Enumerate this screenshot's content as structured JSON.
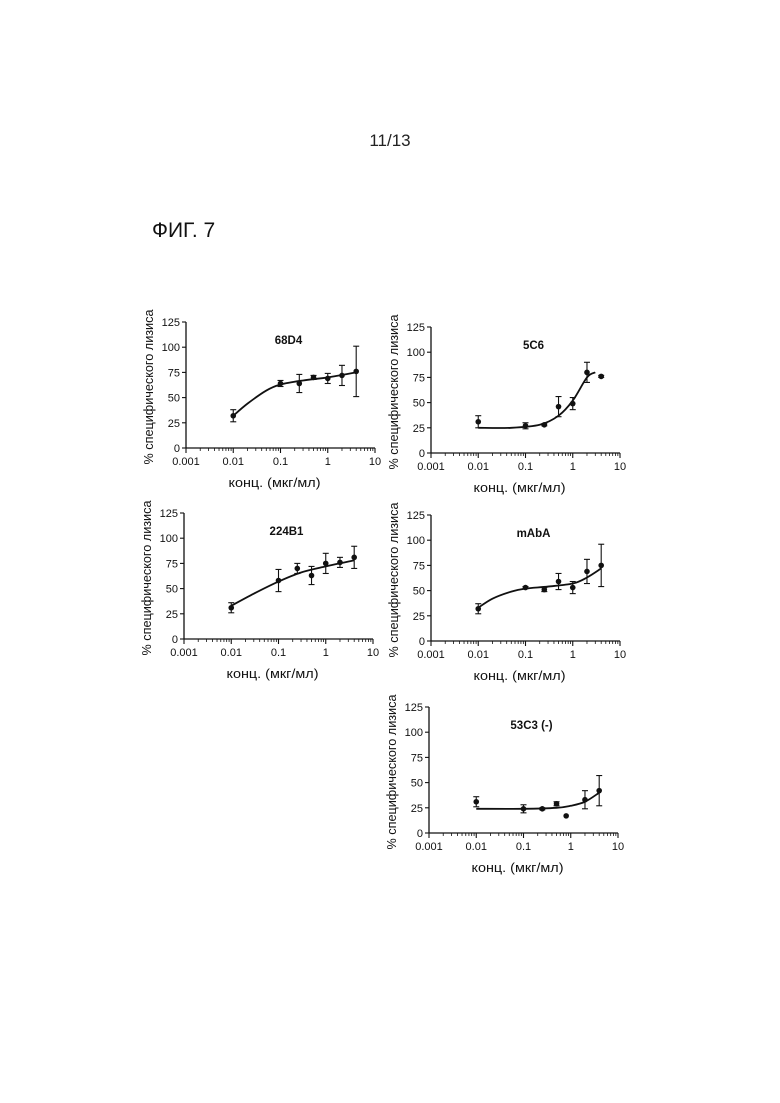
{
  "page_number": "11/13",
  "figure_label": "ФИГ. 7",
  "axis_common": {
    "ylabel": "% специфического лизиса",
    "xlabel": "конц. (мкг/мл)",
    "x_ticks": [
      "0.001",
      "0.01",
      "0.1",
      "1",
      "10"
    ],
    "y_ticks": [
      "0",
      "25",
      "50",
      "75",
      "100",
      "125"
    ]
  },
  "chart_data": [
    {
      "type": "scatter",
      "title": "68D4",
      "x_scale": "log",
      "xlim": [
        0.001,
        10
      ],
      "ylim": [
        0,
        125
      ],
      "points": [
        {
          "x": 0.01,
          "y": 32,
          "err": 6
        },
        {
          "x": 0.1,
          "y": 64,
          "err": 3
        },
        {
          "x": 0.25,
          "y": 64,
          "err": 9
        },
        {
          "x": 0.5,
          "y": 70,
          "err": 2
        },
        {
          "x": 1,
          "y": 69,
          "err": 5
        },
        {
          "x": 2,
          "y": 72,
          "err": 10
        },
        {
          "x": 4,
          "y": 76,
          "err": 25
        }
      ],
      "fit": [
        {
          "x": 0.01,
          "y": 32
        },
        {
          "x": 0.02,
          "y": 44
        },
        {
          "x": 0.05,
          "y": 57
        },
        {
          "x": 0.1,
          "y": 63
        },
        {
          "x": 0.3,
          "y": 67
        },
        {
          "x": 1,
          "y": 70
        },
        {
          "x": 4,
          "y": 75
        }
      ]
    },
    {
      "type": "scatter",
      "title": "5C6",
      "x_scale": "log",
      "xlim": [
        0.001,
        10
      ],
      "ylim": [
        0,
        125
      ],
      "points": [
        {
          "x": 0.01,
          "y": 31,
          "err": 6
        },
        {
          "x": 0.1,
          "y": 27,
          "err": 3
        },
        {
          "x": 0.25,
          "y": 28,
          "err": 1
        },
        {
          "x": 0.5,
          "y": 46,
          "err": 10
        },
        {
          "x": 1,
          "y": 49,
          "err": 6
        },
        {
          "x": 2,
          "y": 80,
          "err": 10
        },
        {
          "x": 4,
          "y": 76,
          "err": 1
        }
      ],
      "fit": [
        {
          "x": 0.01,
          "y": 25
        },
        {
          "x": 0.05,
          "y": 25
        },
        {
          "x": 0.2,
          "y": 28
        },
        {
          "x": 0.5,
          "y": 37
        },
        {
          "x": 1,
          "y": 52
        },
        {
          "x": 2,
          "y": 75
        },
        {
          "x": 3,
          "y": 80
        }
      ]
    },
    {
      "type": "scatter",
      "title": "224B1",
      "x_scale": "log",
      "xlim": [
        0.001,
        10
      ],
      "ylim": [
        0,
        125
      ],
      "points": [
        {
          "x": 0.01,
          "y": 31,
          "err": 5
        },
        {
          "x": 0.1,
          "y": 58,
          "err": 11
        },
        {
          "x": 0.25,
          "y": 70,
          "err": 5
        },
        {
          "x": 0.5,
          "y": 63,
          "err": 9
        },
        {
          "x": 1,
          "y": 75,
          "err": 10
        },
        {
          "x": 2,
          "y": 76,
          "err": 5
        },
        {
          "x": 4,
          "y": 81,
          "err": 11
        }
      ],
      "fit": [
        {
          "x": 0.01,
          "y": 33
        },
        {
          "x": 0.03,
          "y": 45
        },
        {
          "x": 0.1,
          "y": 57
        },
        {
          "x": 0.3,
          "y": 66
        },
        {
          "x": 1,
          "y": 72
        },
        {
          "x": 4,
          "y": 78
        }
      ]
    },
    {
      "type": "scatter",
      "title": "mAbA",
      "x_scale": "log",
      "xlim": [
        0.001,
        10
      ],
      "ylim": [
        0,
        125
      ],
      "points": [
        {
          "x": 0.01,
          "y": 32,
          "err": 5
        },
        {
          "x": 0.1,
          "y": 53,
          "err": 1
        },
        {
          "x": 0.25,
          "y": 51,
          "err": 2
        },
        {
          "x": 0.5,
          "y": 59,
          "err": 8
        },
        {
          "x": 1,
          "y": 53,
          "err": 6
        },
        {
          "x": 2,
          "y": 69,
          "err": 12
        },
        {
          "x": 4,
          "y": 75,
          "err": 21
        }
      ],
      "fit": [
        {
          "x": 0.01,
          "y": 33
        },
        {
          "x": 0.02,
          "y": 42
        },
        {
          "x": 0.05,
          "y": 49
        },
        {
          "x": 0.1,
          "y": 52
        },
        {
          "x": 0.3,
          "y": 54
        },
        {
          "x": 1,
          "y": 57
        },
        {
          "x": 2,
          "y": 63
        },
        {
          "x": 4,
          "y": 72
        }
      ]
    },
    {
      "type": "scatter",
      "title": "53C3 (-)",
      "x_scale": "log",
      "xlim": [
        0.001,
        10
      ],
      "ylim": [
        0,
        125
      ],
      "points": [
        {
          "x": 0.01,
          "y": 31,
          "err": 5
        },
        {
          "x": 0.1,
          "y": 24,
          "err": 4
        },
        {
          "x": 0.25,
          "y": 24,
          "err": 1
        },
        {
          "x": 0.5,
          "y": 29,
          "err": 2
        },
        {
          "x": 0.8,
          "y": 17,
          "err": 0
        },
        {
          "x": 2,
          "y": 33,
          "err": 9
        },
        {
          "x": 4,
          "y": 42,
          "err": 15
        }
      ],
      "fit": [
        {
          "x": 0.01,
          "y": 24
        },
        {
          "x": 0.1,
          "y": 24
        },
        {
          "x": 0.5,
          "y": 25
        },
        {
          "x": 1,
          "y": 27
        },
        {
          "x": 2,
          "y": 31
        },
        {
          "x": 4,
          "y": 40
        }
      ]
    }
  ]
}
